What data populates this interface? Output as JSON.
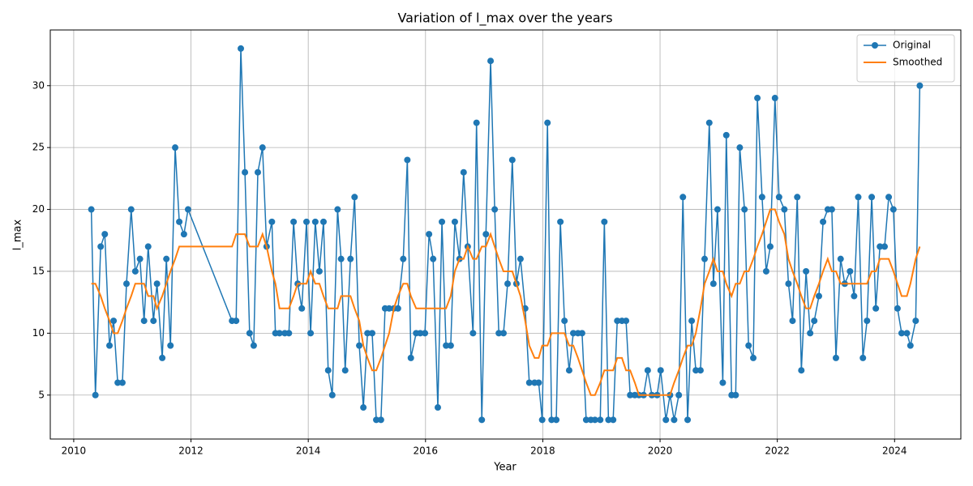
{
  "chart_data": {
    "type": "line",
    "title": "Variation of l_max over the years",
    "x_label": "Year",
    "y_label": "l_max",
    "x": [
      2010.3,
      2010.37,
      2010.46,
      2010.53,
      2010.61,
      2010.68,
      2010.75,
      2010.83,
      2010.9,
      2010.98,
      2011.05,
      2011.13,
      2011.2,
      2011.27,
      2011.36,
      2011.42,
      2011.51,
      2011.58,
      2011.65,
      2011.73,
      2011.8,
      2011.88,
      2011.95,
      2012.7,
      2012.77,
      2012.85,
      2012.92,
      2013.0,
      2013.07,
      2013.14,
      2013.22,
      2013.29,
      2013.38,
      2013.44,
      2013.51,
      2013.6,
      2013.67,
      2013.75,
      2013.82,
      2013.89,
      2013.97,
      2014.04,
      2014.12,
      2014.19,
      2014.26,
      2014.34,
      2014.41,
      2014.5,
      2014.56,
      2014.63,
      2014.72,
      2014.79,
      2014.87,
      2014.94,
      2015.01,
      2015.09,
      2015.16,
      2015.24,
      2015.31,
      2015.38,
      2015.46,
      2015.53,
      2015.62,
      2015.69,
      2015.75,
      2015.84,
      2015.91,
      2015.99,
      2016.06,
      2016.13,
      2016.21,
      2016.28,
      2016.35,
      2016.43,
      2016.5,
      2016.58,
      2016.65,
      2016.72,
      2016.81,
      2016.87,
      2016.96,
      2017.03,
      2017.11,
      2017.18,
      2017.25,
      2017.33,
      2017.4,
      2017.48,
      2017.55,
      2017.62,
      2017.7,
      2017.77,
      2017.86,
      2017.93,
      2017.99,
      2018.08,
      2018.15,
      2018.23,
      2018.3,
      2018.37,
      2018.45,
      2018.52,
      2018.6,
      2018.67,
      2018.74,
      2018.82,
      2018.89,
      2018.98,
      2019.05,
      2019.12,
      2019.2,
      2019.27,
      2019.35,
      2019.42,
      2019.49,
      2019.57,
      2019.64,
      2019.72,
      2019.79,
      2019.86,
      2019.95,
      2020.01,
      2020.1,
      2020.17,
      2020.24,
      2020.32,
      2020.39,
      2020.47,
      2020.54,
      2020.61,
      2020.69,
      2020.76,
      2020.84,
      2020.91,
      2020.98,
      2021.07,
      2021.13,
      2021.22,
      2021.29,
      2021.36,
      2021.44,
      2021.51,
      2021.59,
      2021.66,
      2021.74,
      2021.81,
      2021.88,
      2021.96,
      2022.03,
      2022.12,
      2022.19,
      2022.26,
      2022.34,
      2022.41,
      2022.49,
      2022.56,
      2022.63,
      2022.71,
      2022.78,
      2022.86,
      2022.93,
      2023.0,
      2023.08,
      2023.15,
      2023.24,
      2023.31,
      2023.38,
      2023.46,
      2023.53,
      2023.61,
      2023.68,
      2023.75,
      2023.83,
      2023.9,
      2023.98,
      2024.05,
      2024.12,
      2024.21,
      2024.27,
      2024.36,
      2024.43
    ],
    "series": [
      {
        "name": "Original",
        "color": "#1f77b4",
        "marker": "circle",
        "values": [
          20,
          5,
          17,
          18,
          9,
          11,
          6,
          6,
          14,
          20,
          15,
          16,
          11,
          17,
          11,
          14,
          8,
          16,
          9,
          25,
          19,
          18,
          20,
          11,
          11,
          33,
          23,
          10,
          9,
          23,
          25,
          17,
          19,
          10,
          10,
          10,
          10,
          19,
          14,
          12,
          19,
          10,
          19,
          15,
          19,
          7,
          5,
          20,
          16,
          7,
          16,
          21,
          9,
          4,
          10,
          10,
          3,
          3,
          12,
          12,
          12,
          12,
          16,
          24,
          8,
          10,
          10,
          10,
          18,
          16,
          4,
          19,
          9,
          9,
          19,
          16,
          23,
          17,
          10,
          27,
          3,
          18,
          32,
          20,
          10,
          10,
          14,
          24,
          14,
          16,
          12,
          6,
          6,
          6,
          3,
          27,
          3,
          3,
          19,
          11,
          7,
          10,
          10,
          10,
          3,
          3,
          3,
          3,
          19,
          3,
          3,
          11,
          11,
          11,
          5,
          5,
          5,
          5,
          7,
          5,
          5,
          7,
          3,
          5,
          3,
          5,
          21,
          3,
          11,
          7,
          7,
          16,
          27,
          14,
          20,
          6,
          26,
          5,
          5,
          25,
          20,
          9,
          8,
          29,
          21,
          15,
          17,
          29,
          21,
          20,
          14,
          11,
          21,
          7,
          15,
          10,
          11,
          13,
          19,
          20,
          20,
          8,
          16,
          14,
          15,
          13,
          21,
          8,
          11,
          21,
          12,
          17,
          17,
          21,
          20,
          12,
          10,
          10,
          9,
          11,
          30
        ]
      },
      {
        "name": "Smoothed",
        "color": "#ff7f0e",
        "values": [
          14,
          14,
          13,
          12,
          11,
          10,
          10,
          11,
          12,
          13,
          14,
          14,
          14,
          13,
          13,
          12,
          13,
          14,
          15,
          16,
          17,
          17,
          17,
          17,
          18,
          18,
          18,
          17,
          17,
          17,
          18,
          17,
          15,
          14,
          12,
          12,
          12,
          13,
          14,
          14,
          14,
          15,
          14,
          14,
          13,
          12,
          12,
          12,
          13,
          13,
          13,
          12,
          11,
          9,
          8,
          7,
          7,
          8,
          9,
          10,
          12,
          13,
          14,
          14,
          13,
          12,
          12,
          12,
          12,
          12,
          12,
          12,
          12,
          13,
          15,
          16,
          16,
          17,
          16,
          16,
          17,
          17,
          18,
          17,
          16,
          15,
          15,
          15,
          14,
          13,
          11,
          9,
          8,
          8,
          9,
          9,
          10,
          10,
          10,
          10,
          9,
          9,
          8,
          7,
          6,
          5,
          5,
          6,
          7,
          7,
          7,
          8,
          8,
          7,
          7,
          6,
          5,
          5,
          5,
          5,
          5,
          5,
          5,
          5,
          6,
          7,
          8,
          9,
          9,
          10,
          12,
          14,
          15,
          16,
          15,
          15,
          14,
          13,
          14,
          14,
          15,
          15,
          16,
          17,
          18,
          19,
          20,
          20,
          19,
          18,
          16,
          15,
          14,
          13,
          12,
          12,
          13,
          14,
          15,
          16,
          15,
          15,
          14,
          14,
          14,
          14,
          14,
          14,
          14,
          15,
          15,
          16,
          16,
          16,
          15,
          14,
          13,
          13,
          14,
          16,
          17
        ]
      }
    ],
    "xlim": [
      2009.6,
      2025.13
    ],
    "ylim": [
      1.45,
      34.5
    ],
    "xticks": [
      2010,
      2012,
      2014,
      2016,
      2018,
      2020,
      2022,
      2024
    ],
    "yticks": [
      5,
      10,
      15,
      20,
      25,
      30
    ],
    "grid": true,
    "legend": "upper right"
  }
}
